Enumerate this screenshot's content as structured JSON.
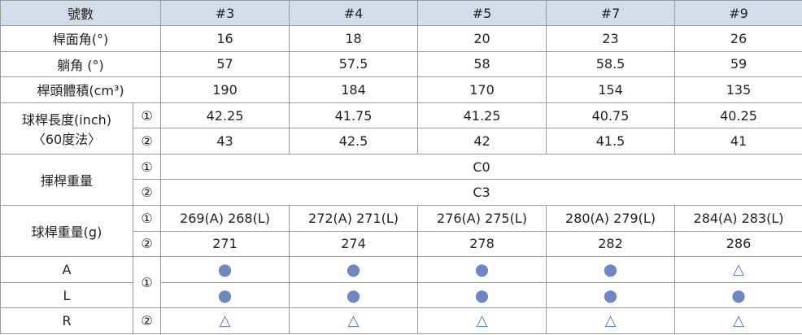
{
  "header": [
    "號數",
    "#3",
    "#4",
    "#5",
    "#7",
    "#9"
  ],
  "loft": {
    "label": "桿面角(°)",
    "values": [
      "16",
      "18",
      "20",
      "23",
      "26"
    ]
  },
  "lie": {
    "label": "躺角 (°)",
    "values": [
      "57",
      "57.5",
      "58",
      "58.5",
      "59"
    ]
  },
  "volume": {
    "label": "桿頭體積(cm³)",
    "values": [
      "190",
      "184",
      "170",
      "154",
      "135"
    ]
  },
  "length": {
    "label": [
      "球桿長度(inch)",
      "〈60度法〉"
    ],
    "rows": [
      {
        "mark": "①",
        "values": [
          "42.25",
          "41.75",
          "41.25",
          "40.75",
          "40.25"
        ]
      },
      {
        "mark": "②",
        "values": [
          "43",
          "42.5",
          "42",
          "41.5",
          "41"
        ]
      }
    ]
  },
  "swing_weight": {
    "label": "揮桿重量",
    "rows": [
      {
        "mark": "①",
        "value": "C0"
      },
      {
        "mark": "②",
        "value": "C3"
      }
    ]
  },
  "weight": {
    "label": "球桿重量(g)",
    "rows": [
      {
        "mark": "①",
        "values": [
          "269(A) 268(L)",
          "272(A) 271(L)",
          "276(A) 275(L)",
          "280(A) 279(L)",
          "284(A) 283(L)"
        ]
      },
      {
        "mark": "②",
        "values": [
          "271",
          "274",
          "278",
          "282",
          "286"
        ]
      }
    ]
  },
  "flex": {
    "marks": [
      "①",
      "②"
    ],
    "rows": [
      {
        "label": "A",
        "values": [
          "●",
          "●",
          "●",
          "●",
          "△"
        ]
      },
      {
        "label": "L",
        "values": [
          "●",
          "●",
          "●",
          "●",
          "●"
        ]
      },
      {
        "label": "R",
        "values": [
          "△",
          "△",
          "△",
          "△",
          "△"
        ]
      }
    ]
  }
}
